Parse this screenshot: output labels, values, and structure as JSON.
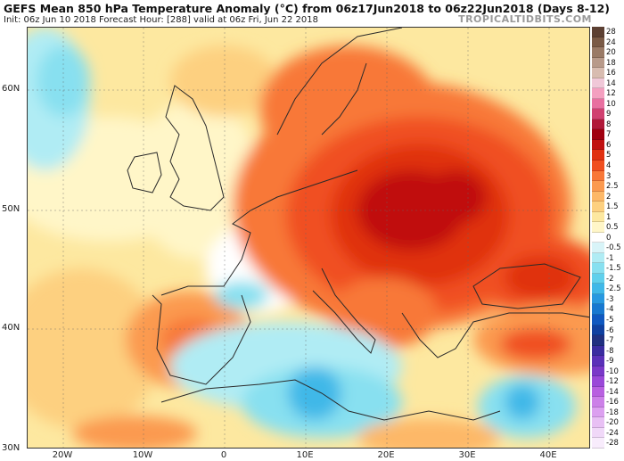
{
  "header": {
    "title": "GEFS Mean 850 hPa Temperature Anomaly (°C) from 06z17Jun2018 to 06z22Jun2018 (Days 8-12)",
    "subtitle": "Init: 06z Jun 10 2018   Forecast Hour: [288]   valid at 06z Fri, Jun 22 2018",
    "brand": "TROPICALTIDBITS.COM"
  },
  "axes": {
    "latitudes": [
      "60N",
      "50N",
      "40N",
      "30N"
    ],
    "longitudes": [
      "20W",
      "10W",
      "0",
      "10E",
      "20E",
      "30E",
      "40E"
    ]
  },
  "colorbar": {
    "labels": [
      "28",
      "24",
      "20",
      "18",
      "16",
      "14",
      "12",
      "10",
      "9",
      "8",
      "7",
      "6",
      "5",
      "4",
      "3",
      "2.5",
      "2",
      "1.5",
      "1",
      "0.5",
      "0",
      "-0.5",
      "-1",
      "-1.5",
      "-2",
      "-2.5",
      "-3",
      "-4",
      "-5",
      "-6",
      "-7",
      "-8",
      "-9",
      "-10",
      "-12",
      "-14",
      "-16",
      "-18",
      "-20",
      "-24",
      "-28"
    ],
    "colors": [
      "#5c4033",
      "#7a5a46",
      "#9a7a66",
      "#b89a8a",
      "#d8bcb0",
      "#f0c8d8",
      "#f4a0c0",
      "#e870a0",
      "#d04070",
      "#b01838",
      "#a00010",
      "#c01010",
      "#e03010",
      "#f05020",
      "#f87838",
      "#fb9a50",
      "#fdb868",
      "#fdd080",
      "#fde8a0",
      "#fff6c8",
      "#ffffff",
      "#d8f4f8",
      "#b0ecf4",
      "#88e0f0",
      "#60d0ec",
      "#40b8e8",
      "#2898e0",
      "#1878d0",
      "#1058c0",
      "#1040a0",
      "#203080",
      "#3a2ca0",
      "#5a30b8",
      "#7a38c8",
      "#9a48d8",
      "#b860e0",
      "#cc80e8",
      "#dca0f0",
      "#e8c0f4",
      "#f0d8f8",
      "#f8ecfc"
    ]
  },
  "colors": {
    "warm_core": "#c01c1c",
    "land_outline": "#2a2a2a",
    "cool_anomaly": "#3f8fd8"
  }
}
